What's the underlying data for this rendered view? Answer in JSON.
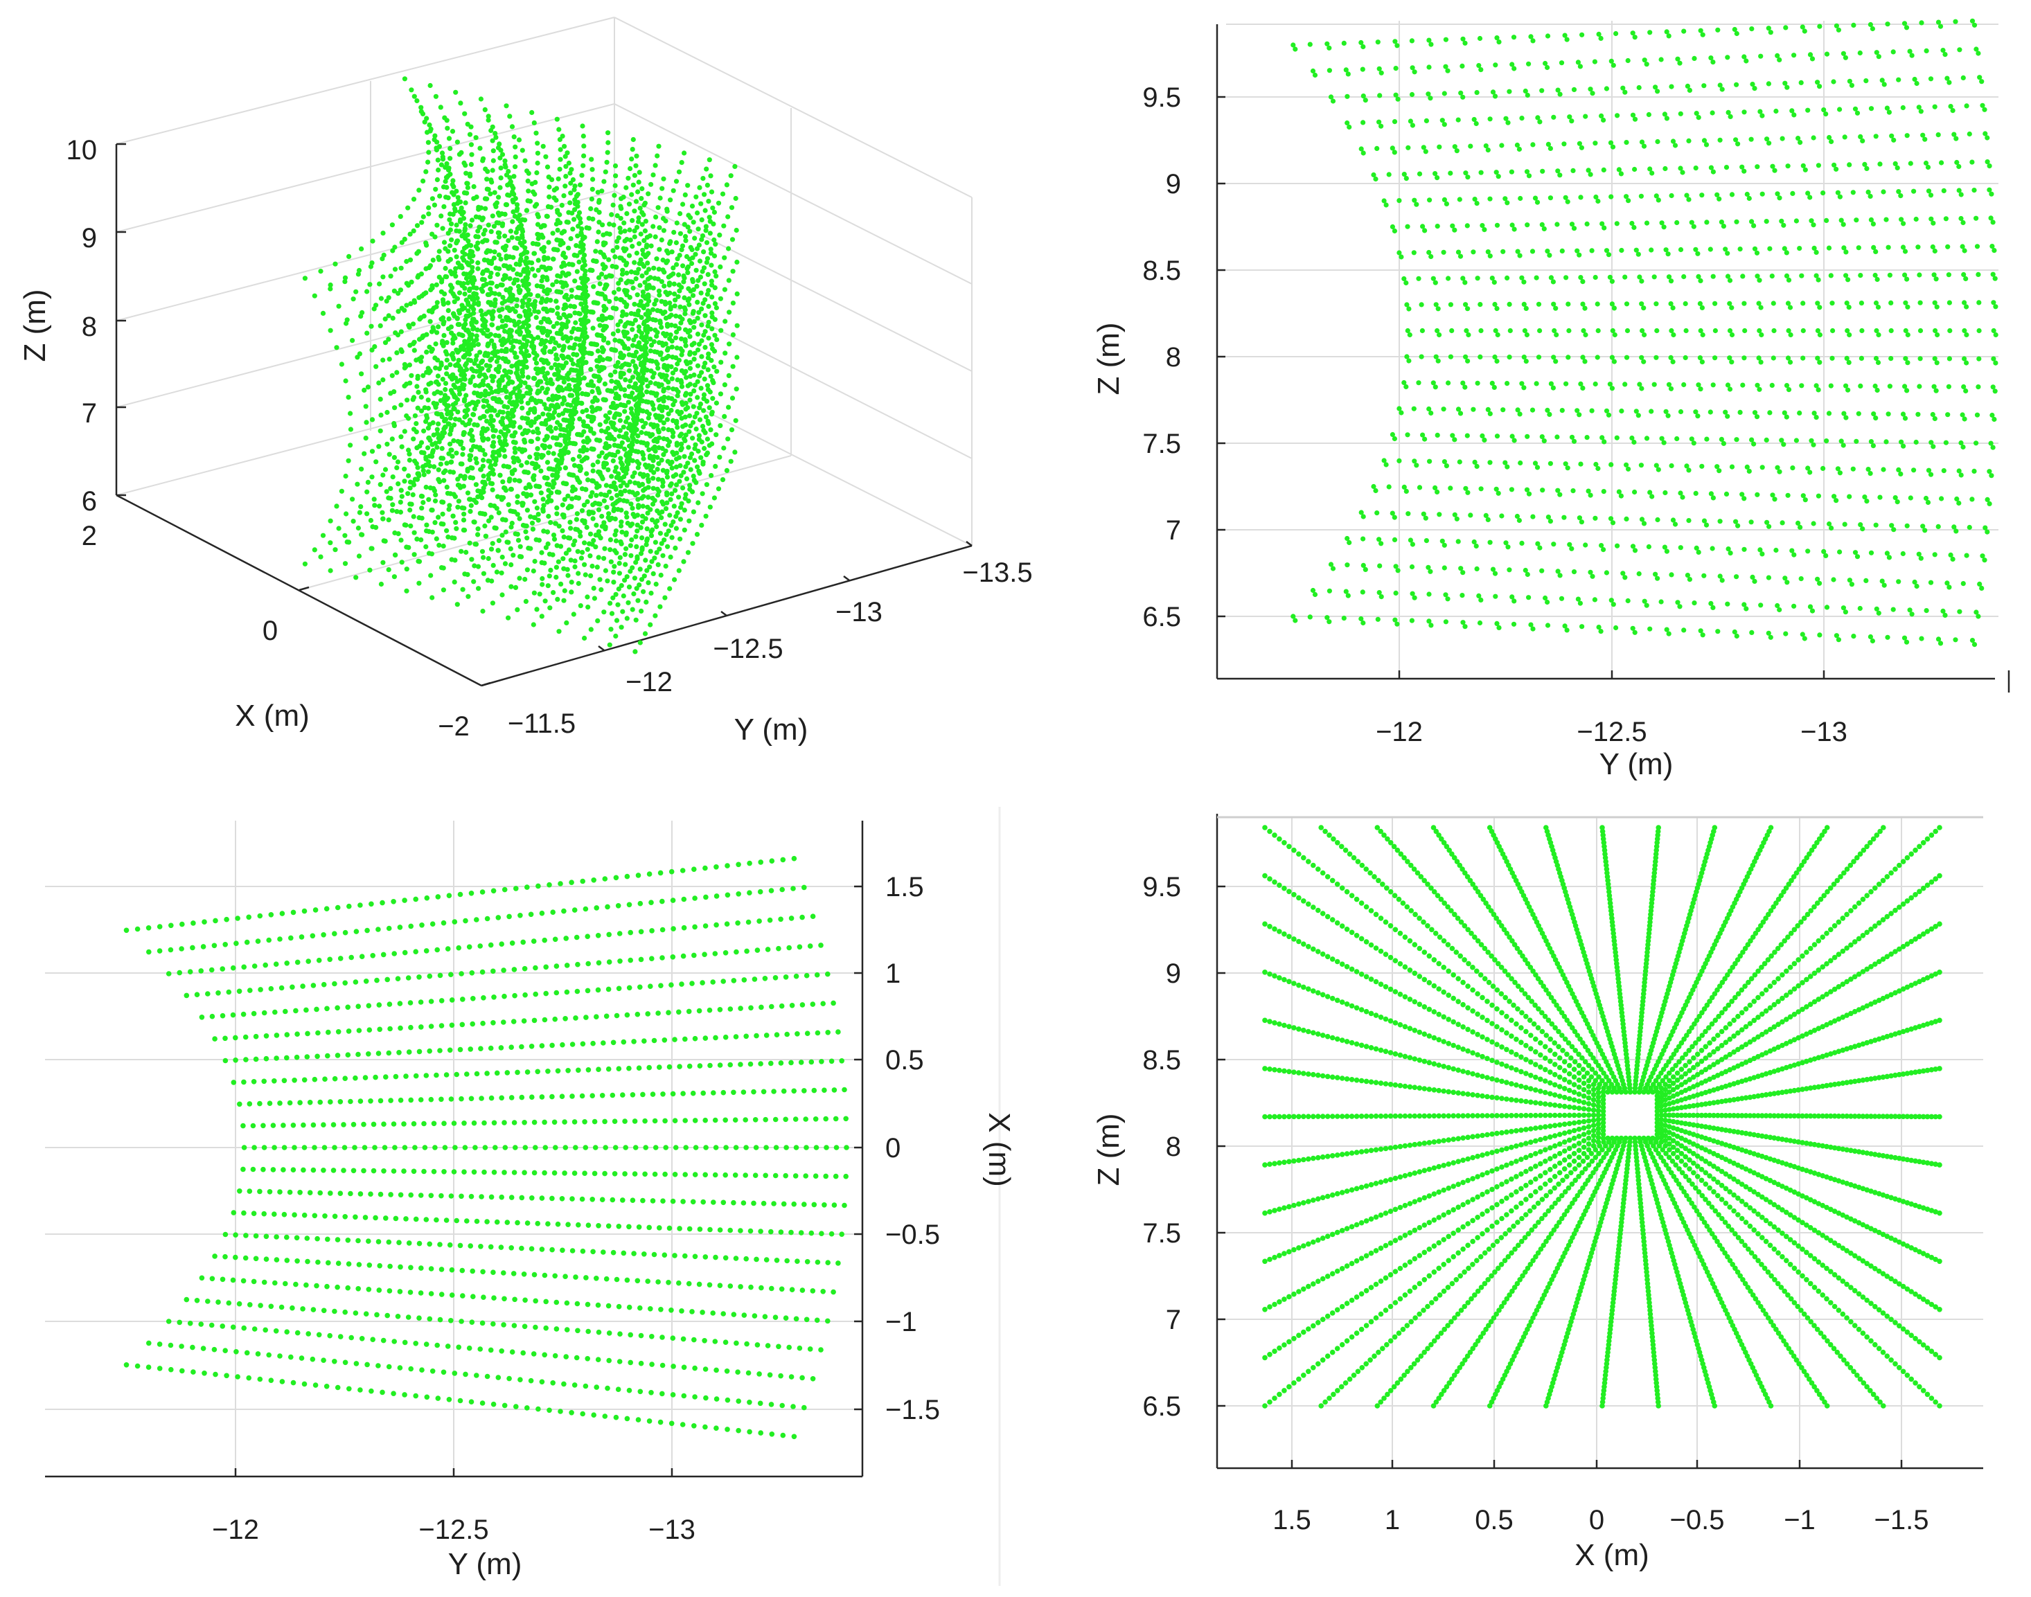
{
  "chart_data": [
    {
      "panel": "top-left",
      "type": "scatter",
      "view": "3d",
      "title": "",
      "xlabel": "X (m)",
      "ylabel": "Y (m)",
      "zlabel": "Z (m)",
      "xlim": [
        -2,
        2
      ],
      "ylim": [
        -11.5,
        -13.5
      ],
      "zlim": [
        6,
        10
      ],
      "xticks": [
        "2",
        "0",
        "−2"
      ],
      "yticks": [
        "−11.5",
        "−12",
        "−12.5",
        "−13",
        "−13.5"
      ],
      "zticks": [
        "10",
        "9",
        "8",
        "7",
        "6"
      ],
      "grid": true,
      "marker_color": "#22ee22",
      "point_cloud": {
        "x_range": [
          -1.6,
          1.6
        ],
        "y_range": [
          -11.8,
          -13.3
        ],
        "z_range": [
          6.5,
          9.8
        ]
      }
    },
    {
      "panel": "top-right",
      "type": "scatter",
      "view": "Y-Z",
      "title": "",
      "xlabel": "Y (m)",
      "ylabel": "Z (m)",
      "xticks": [
        "−12",
        "−12.5",
        "−13"
      ],
      "yticks": [
        "9.5",
        "9",
        "8.5",
        "8",
        "7.5",
        "7",
        "6.5"
      ],
      "grid": true,
      "marker_color": "#22ee22"
    },
    {
      "panel": "bottom-left",
      "type": "scatter",
      "view": "Y-X",
      "title": "",
      "xlabel": "Y (m)",
      "ylabel": "X (m)",
      "xticks": [
        "−12",
        "−12.5",
        "−13"
      ],
      "yticks": [
        "1.5",
        "1",
        "0.5",
        "0",
        "−0.5",
        "−1",
        "−1.5"
      ],
      "grid": true,
      "marker_color": "#22ee22"
    },
    {
      "panel": "bottom-right",
      "type": "scatter",
      "view": "X-Z",
      "title": "",
      "xlabel": "X (m)",
      "ylabel": "Z (m)",
      "xticks": [
        "1.5",
        "1",
        "0.5",
        "0",
        "−0.5",
        "−1",
        "−1.5"
      ],
      "yticks": [
        "9.5",
        "9",
        "8.5",
        "8",
        "7.5",
        "7",
        "6.5"
      ],
      "grid": true,
      "marker_color": "#22ee22"
    }
  ]
}
